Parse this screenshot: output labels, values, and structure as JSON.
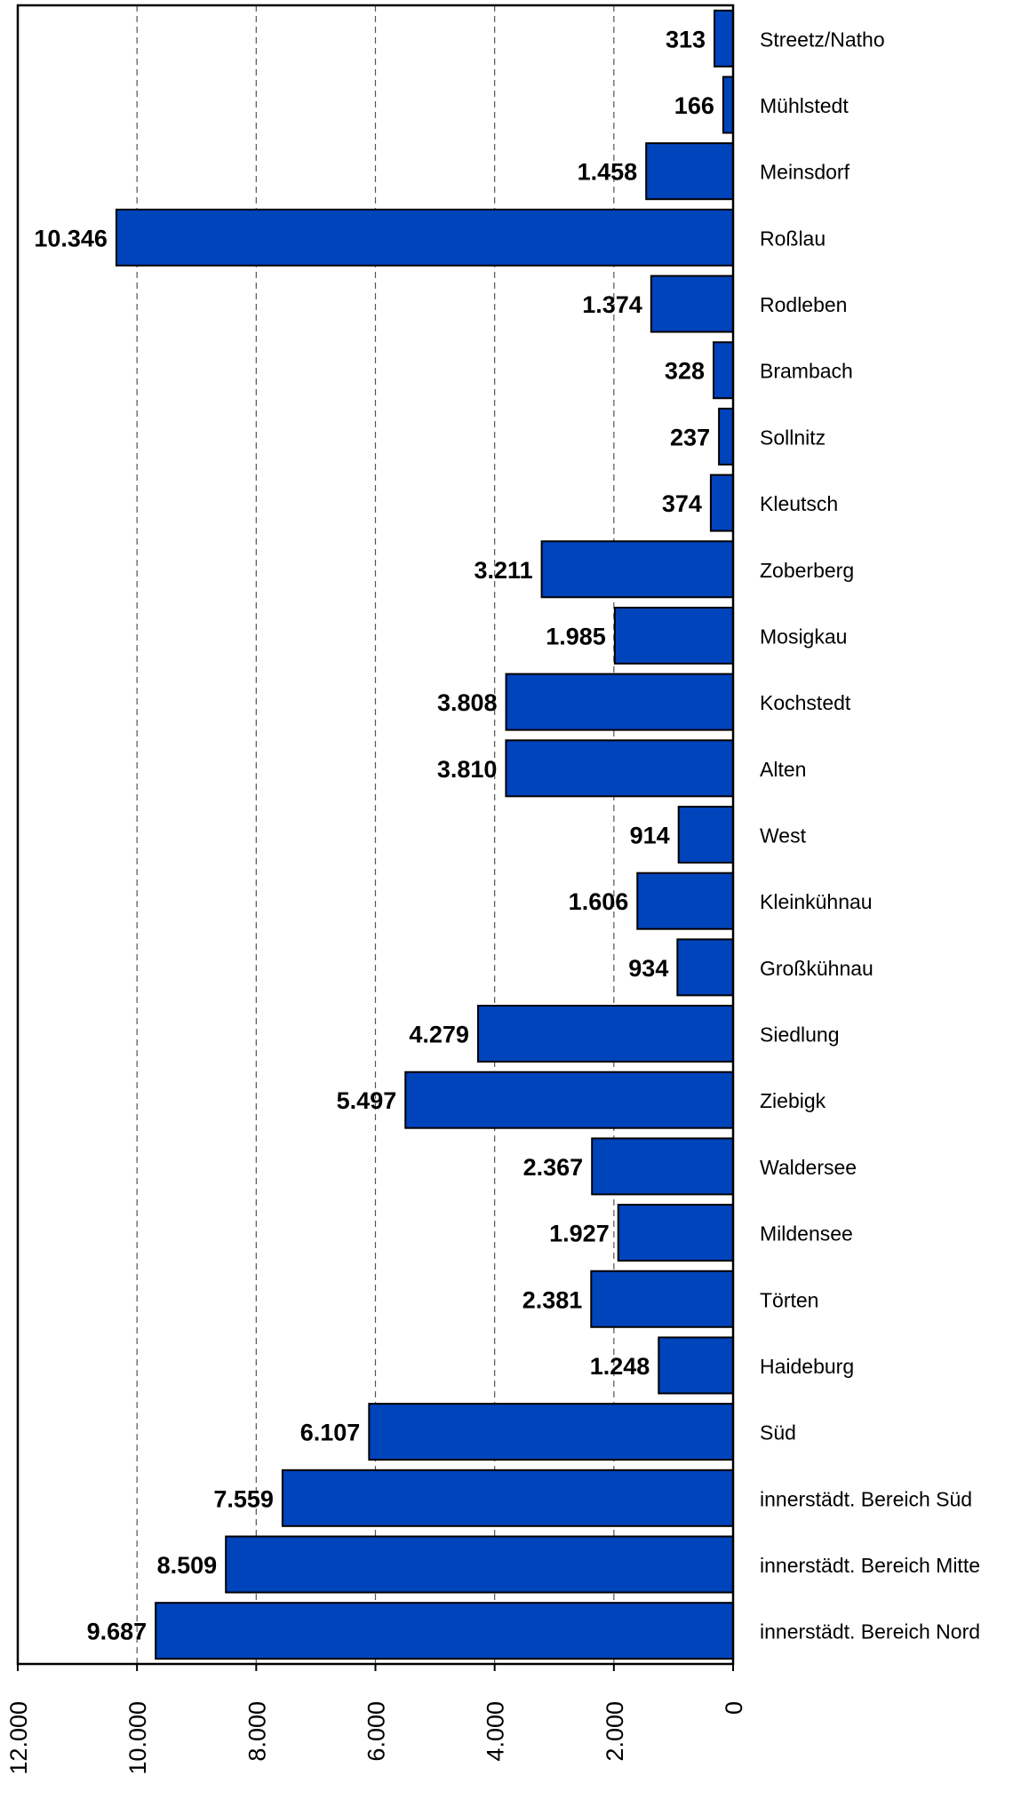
{
  "chart_data": {
    "type": "bar",
    "orientation": "horizontal",
    "direction": "right-to-left",
    "categories": [
      "Streetz/Natho",
      "Mühlstedt",
      "Meinsdorf",
      "Roßlau",
      "Rodleben",
      "Brambach",
      "Sollnitz",
      "Kleutsch",
      "Zoberberg",
      "Mosigkau",
      "Kochstedt",
      "Alten",
      "West",
      "Kleinkühnau",
      "Großkühnau",
      "Siedlung",
      "Ziebigk",
      "Waldersee",
      "Mildensee",
      "Törten",
      "Haideburg",
      "Süd",
      "innerstädt. Bereich Süd",
      "innerstädt. Bereich Mitte",
      "innerstädt. Bereich Nord"
    ],
    "values": [
      313,
      166,
      1458,
      10346,
      1374,
      328,
      237,
      374,
      3211,
      1985,
      3808,
      3810,
      914,
      1606,
      934,
      4279,
      5497,
      2367,
      1927,
      2381,
      1248,
      6107,
      7559,
      8509,
      9687
    ],
    "value_labels": [
      "313",
      "166",
      "1.458",
      "10.346",
      "1.374",
      "328",
      "237",
      "374",
      "3.211",
      "1.985",
      "3.808",
      "3.810",
      "914",
      "1.606",
      "934",
      "4.279",
      "5.497",
      "2.367",
      "1.927",
      "2.381",
      "1.248",
      "6.107",
      "7.559",
      "8.509",
      "9.687"
    ],
    "axis_ticks": [
      0,
      2000,
      4000,
      6000,
      8000,
      10000,
      12000
    ],
    "axis_tick_labels": [
      "0",
      "2.000",
      "4.000",
      "6.000",
      "8.000",
      "10.000",
      "12.000"
    ],
    "xlim": [
      0,
      12000
    ],
    "grid": true,
    "bar_color": "#0044BB",
    "title": "",
    "xlabel": "",
    "ylabel": ""
  }
}
